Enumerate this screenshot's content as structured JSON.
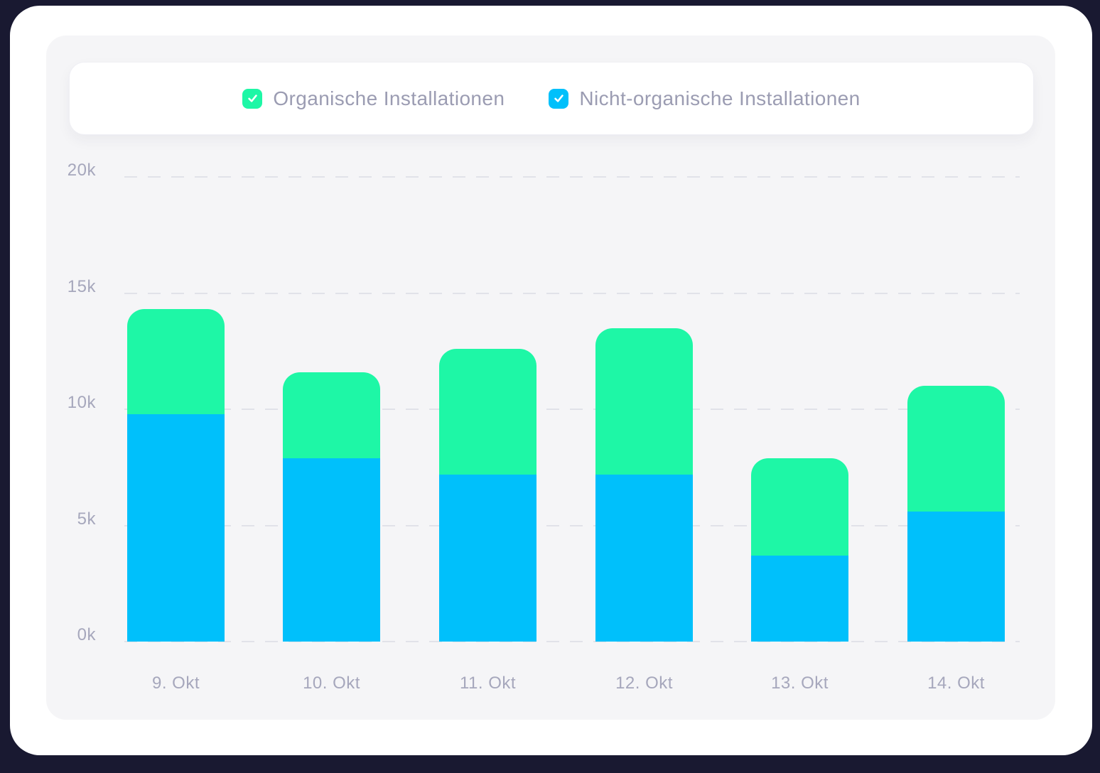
{
  "legend": {
    "items": [
      {
        "label": "Organische Installationen",
        "color": "#1EF7A6",
        "checked": true
      },
      {
        "label": "Nicht-organische Installationen",
        "color": "#00C0FB",
        "checked": true
      }
    ]
  },
  "chart_data": {
    "type": "bar",
    "stacked": true,
    "title": "",
    "categories": [
      "9. Okt",
      "10. Okt",
      "11. Okt",
      "12. Okt",
      "13. Okt",
      "14. Okt"
    ],
    "series": [
      {
        "name": "Nicht-organische Installationen",
        "color": "#00C0FB",
        "stack_position": "bottom",
        "values": [
          9800,
          7900,
          7200,
          7200,
          3700,
          5600
        ]
      },
      {
        "name": "Organische Installationen",
        "color": "#1EF7A6",
        "stack_position": "top",
        "values": [
          4500,
          3700,
          5400,
          6300,
          4200,
          5400
        ]
      }
    ],
    "y_ticks": [
      {
        "label": "0k",
        "value": 0
      },
      {
        "label": "5k",
        "value": 5000
      },
      {
        "label": "10k",
        "value": 10000
      },
      {
        "label": "15k",
        "value": 15000
      },
      {
        "label": "20k",
        "value": 20000
      }
    ],
    "ylim": [
      0,
      20000
    ],
    "xlabel": "",
    "ylabel": "",
    "grid": "horizontal-dashed",
    "legend_position": "top"
  },
  "colors": {
    "page_background": "#191931",
    "card_background": "#FFFFFF",
    "panel_background": "#F5F5F7",
    "gridline": "#E1E2E9",
    "axis_text": "#A6A7BC",
    "legend_text": "#9B9CB2"
  }
}
